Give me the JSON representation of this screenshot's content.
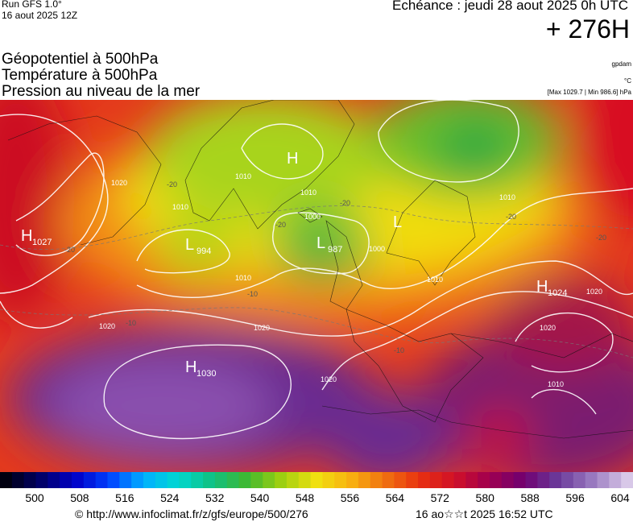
{
  "header": {
    "run": "Run GFS 1.0°",
    "run_date": "16 aout 2025 12Z",
    "valid": "Echéance : jeudi 28 aout 2025 0h UTC",
    "lead": "+ 276H"
  },
  "legend": {
    "lines": [
      "Géopotentiel à 500hPa",
      "Température à 500hPa",
      "Pression au niveau de la mer"
    ],
    "units": [
      "gpdam",
      "°C",
      "[Max 1029.7 | Min 986.6] hPa"
    ]
  },
  "pressure_centers": [
    {
      "letter": "H",
      "value": 1027
    },
    {
      "letter": "L",
      "value": 994
    },
    {
      "letter": "L",
      "value": 987
    },
    {
      "letter": "H"
    },
    {
      "letter": "L"
    },
    {
      "letter": "H",
      "value": 1024
    },
    {
      "letter": "H",
      "value": 1030
    }
  ],
  "isobar_labels": [
    1020,
    1010,
    1010,
    1000,
    1000,
    1010,
    1020,
    1020,
    1020,
    1010,
    1010,
    1020,
    1020,
    1010,
    1010
  ],
  "temperature_labels": [
    -20,
    -20,
    -20,
    -20,
    -20,
    -20,
    -10,
    -10,
    -10
  ],
  "colorbar": {
    "ticks": [
      500,
      508,
      516,
      524,
      532,
      540,
      548,
      556,
      564,
      572,
      580,
      588,
      596,
      604
    ]
  },
  "footer": {
    "source": "© http://www.infoclimat.fr/z/gfs/europe/500/276",
    "generated": "16 ao☆☆t 2025 16:52 UTC"
  }
}
